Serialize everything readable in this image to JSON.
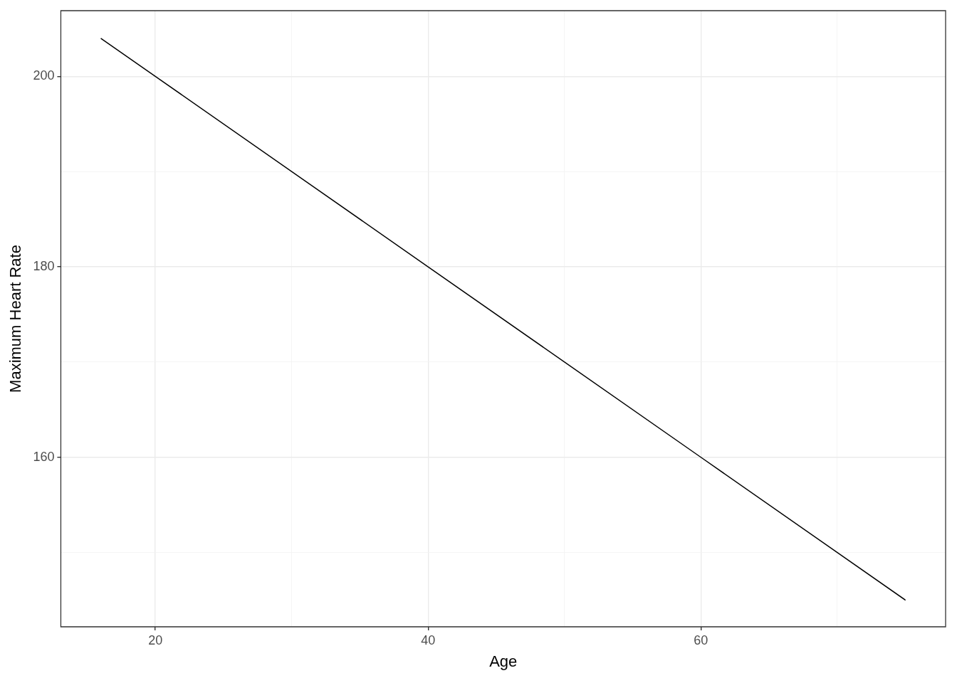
{
  "chart_data": {
    "type": "line",
    "xlabel": "Age",
    "ylabel": "Maximum Heart Rate",
    "series": [
      {
        "color": "#000000",
        "x": [
          16,
          20,
          40,
          60,
          75
        ],
        "values": [
          204,
          200,
          180,
          160,
          145
        ]
      }
    ],
    "xlim": [
      13.07,
      77.94
    ],
    "xticks": [
      {
        "value": 20,
        "label": "20"
      },
      {
        "value": 30,
        "label": null
      },
      {
        "value": 40,
        "label": "40"
      },
      {
        "value": 50,
        "label": null
      },
      {
        "value": 60,
        "label": "60"
      },
      {
        "value": 70,
        "label": null
      }
    ],
    "ylim": [
      142.2,
      206.9
    ],
    "yticks": [
      {
        "value": 150,
        "label": null
      },
      {
        "value": 160,
        "label": "160"
      },
      {
        "value": 170,
        "label": null
      },
      {
        "value": 180,
        "label": "180"
      },
      {
        "value": 190,
        "label": null
      },
      {
        "value": 200,
        "label": "200"
      }
    ],
    "grid": true,
    "legend": false,
    "marker": "none",
    "line_style": "solid"
  }
}
